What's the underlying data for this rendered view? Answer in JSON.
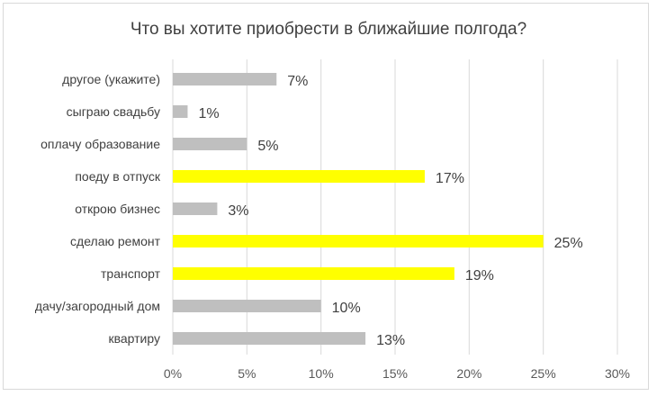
{
  "chart_data": {
    "type": "bar",
    "orientation": "horizontal",
    "title": "Что вы хотите приобрести в ближайшие полгода?",
    "categories": [
      "другое (укажите)",
      "сыграю свадьбу",
      "оплачу образование",
      "поеду в отпуск",
      "открою бизнес",
      "сделаю ремонт",
      "транспорт",
      "дачу/загородный дом",
      "квартиру"
    ],
    "values": [
      7,
      1,
      5,
      17,
      3,
      25,
      19,
      10,
      13
    ],
    "value_labels": [
      "7%",
      "1%",
      "5%",
      "17%",
      "3%",
      "25%",
      "19%",
      "10%",
      "13%"
    ],
    "bar_colors": [
      "#bfbfbf",
      "#bfbfbf",
      "#bfbfbf",
      "#ffff00",
      "#bfbfbf",
      "#ffff00",
      "#ffff00",
      "#bfbfbf",
      "#bfbfbf"
    ],
    "xlim": [
      0,
      30
    ],
    "xticks": [
      0,
      5,
      10,
      15,
      20,
      25,
      30
    ],
    "xtick_labels": [
      "0%",
      "5%",
      "10%",
      "15%",
      "20%",
      "25%",
      "30%"
    ],
    "grid": "vertical",
    "grid_color": "#d9d9d9"
  }
}
